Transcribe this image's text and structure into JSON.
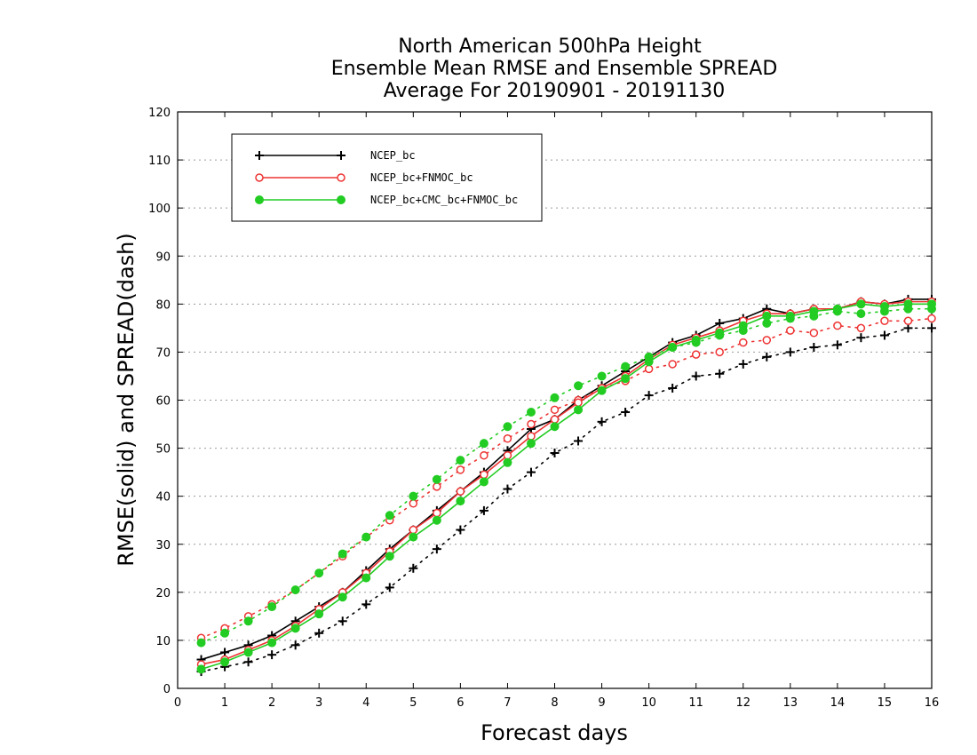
{
  "chart_data": {
    "type": "line",
    "title": [
      "North American 500hPa Height",
      "Ensemble Mean RMSE and Ensemble SPREAD",
      "Average For 20190901 - 20191130"
    ],
    "xlabel": "Forecast days",
    "ylabel": "RMSE(solid) and SPREAD(dash)",
    "xlim": [
      0,
      16
    ],
    "ylim": [
      0,
      120
    ],
    "xticks": [
      0,
      1,
      2,
      3,
      4,
      5,
      6,
      7,
      8,
      9,
      10,
      11,
      12,
      13,
      14,
      15,
      16
    ],
    "yticks": [
      0,
      10,
      20,
      30,
      40,
      50,
      60,
      70,
      80,
      90,
      100,
      110,
      120
    ],
    "grid": "horizontal dotted",
    "legend_position": "top-left",
    "x": [
      0.5,
      1,
      1.5,
      2,
      2.5,
      3,
      3.5,
      4,
      4.5,
      5,
      5.5,
      6,
      6.5,
      7,
      7.5,
      8,
      8.5,
      9,
      9.5,
      10,
      10.5,
      11,
      11.5,
      12,
      12.5,
      13,
      13.5,
      14,
      14.5,
      15,
      15.5,
      16
    ],
    "series": [
      {
        "name": "NCEP_bc",
        "color": "#000000",
        "marker": "plus",
        "rmse": [
          6.0,
          7.5,
          9.0,
          11.0,
          14.0,
          17.0,
          20.0,
          24.5,
          29.0,
          33.0,
          37.0,
          41.0,
          45.0,
          49.5,
          54.0,
          56.0,
          60.0,
          63.0,
          66.0,
          69.0,
          72.0,
          73.5,
          76.0,
          77.0,
          79.0,
          78.0,
          79.0,
          79.0,
          80.5,
          80.0,
          81.0,
          81.0
        ],
        "spread": [
          3.5,
          4.5,
          5.5,
          7.0,
          9.0,
          11.5,
          14.0,
          17.5,
          21.0,
          25.0,
          29.0,
          33.0,
          37.0,
          41.5,
          45.0,
          49.0,
          51.5,
          55.5,
          57.5,
          61.0,
          62.5,
          65.0,
          65.5,
          67.5,
          69.0,
          70.0,
          71.0,
          71.5,
          73.0,
          73.5,
          75.0,
          75.0
        ]
      },
      {
        "name": "NCEP_bc+FNMOC_bc",
        "color": "#ee3333",
        "marker": "open-circle",
        "rmse": [
          5.0,
          6.0,
          8.0,
          10.0,
          13.0,
          16.5,
          20.0,
          24.0,
          28.5,
          33.0,
          36.5,
          41.0,
          44.5,
          48.5,
          52.5,
          56.0,
          59.5,
          62.5,
          65.0,
          68.5,
          71.5,
          73.0,
          74.5,
          76.5,
          78.0,
          78.0,
          79.0,
          79.0,
          80.5,
          80.0,
          80.5,
          80.5
        ],
        "spread": [
          10.5,
          12.5,
          15.0,
          17.5,
          20.5,
          24.0,
          27.5,
          31.5,
          35.0,
          38.5,
          42.0,
          45.5,
          48.5,
          52.0,
          55.0,
          58.0,
          60.0,
          62.5,
          64.0,
          66.5,
          67.5,
          69.5,
          70.0,
          72.0,
          72.5,
          74.5,
          74.0,
          75.5,
          75.0,
          76.5,
          76.5,
          77.0
        ]
      },
      {
        "name": "NCEP_bc+CMC_bc+FNMOC_bc",
        "color": "#22cc22",
        "marker": "filled-circle",
        "rmse": [
          4.0,
          5.5,
          7.5,
          9.5,
          12.5,
          15.5,
          19.0,
          23.0,
          27.5,
          31.5,
          35.0,
          39.0,
          43.0,
          47.0,
          51.0,
          54.5,
          58.0,
          62.0,
          64.5,
          68.0,
          71.0,
          72.5,
          74.0,
          75.5,
          77.5,
          77.5,
          78.5,
          79.0,
          80.0,
          79.5,
          80.0,
          80.0
        ],
        "spread": [
          9.5,
          11.5,
          14.0,
          17.0,
          20.5,
          24.0,
          28.0,
          31.5,
          36.0,
          40.0,
          43.5,
          47.5,
          51.0,
          54.5,
          57.5,
          60.5,
          63.0,
          65.0,
          67.0,
          69.0,
          71.0,
          72.0,
          73.5,
          74.5,
          76.0,
          77.0,
          77.5,
          78.5,
          78.0,
          78.5,
          79.0,
          79.0
        ]
      }
    ]
  }
}
